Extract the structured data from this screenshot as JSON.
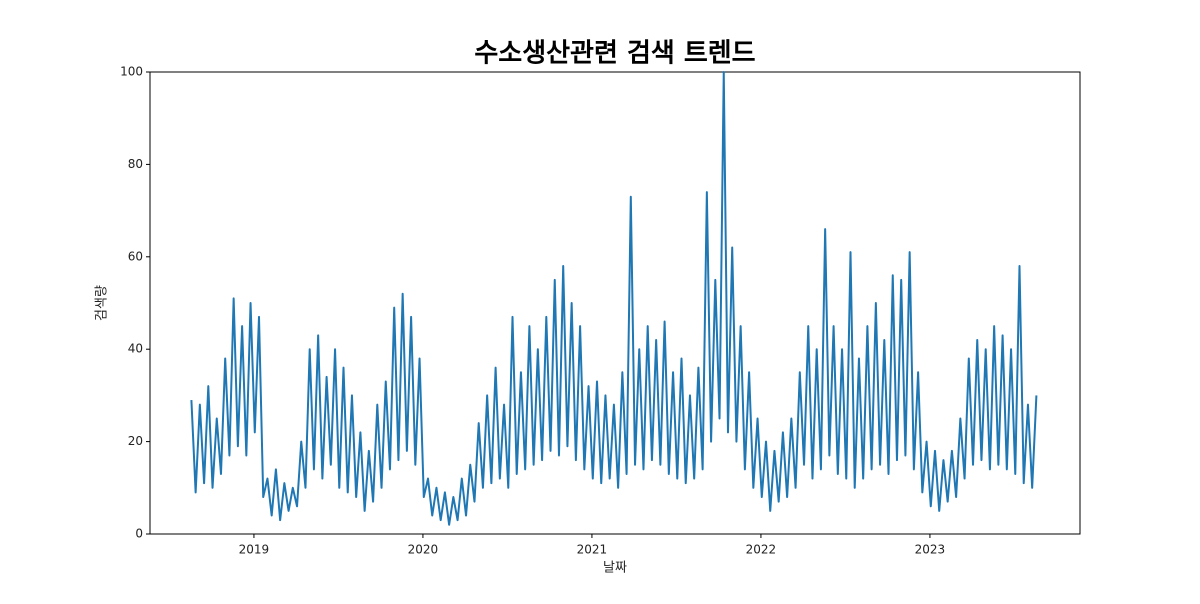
{
  "chart_data": {
    "type": "line",
    "title": "수소생산관련 검색 트렌드",
    "x_label": "날짜",
    "y_label": "검색량",
    "x": [
      2018.63,
      2018.655,
      2018.68,
      2018.705,
      2018.73,
      2018.755,
      2018.78,
      2018.805,
      2018.83,
      2018.855,
      2018.88,
      2018.905,
      2018.93,
      2018.955,
      2018.98,
      2019.005,
      2019.03,
      2019.055,
      2019.08,
      2019.105,
      2019.13,
      2019.155,
      2019.18,
      2019.205,
      2019.23,
      2019.255,
      2019.28,
      2019.305,
      2019.33,
      2019.355,
      2019.38,
      2019.405,
      2019.43,
      2019.455,
      2019.48,
      2019.505,
      2019.53,
      2019.555,
      2019.58,
      2019.605,
      2019.63,
      2019.655,
      2019.68,
      2019.705,
      2019.73,
      2019.755,
      2019.78,
      2019.805,
      2019.83,
      2019.855,
      2019.88,
      2019.905,
      2019.93,
      2019.955,
      2019.98,
      2020.005,
      2020.03,
      2020.055,
      2020.08,
      2020.105,
      2020.13,
      2020.155,
      2020.18,
      2020.205,
      2020.23,
      2020.255,
      2020.28,
      2020.305,
      2020.33,
      2020.355,
      2020.38,
      2020.405,
      2020.43,
      2020.455,
      2020.48,
      2020.505,
      2020.53,
      2020.555,
      2020.58,
      2020.605,
      2020.63,
      2020.655,
      2020.68,
      2020.705,
      2020.73,
      2020.755,
      2020.78,
      2020.805,
      2020.83,
      2020.855,
      2020.88,
      2020.905,
      2020.93,
      2020.955,
      2020.98,
      2021.005,
      2021.03,
      2021.055,
      2021.08,
      2021.105,
      2021.13,
      2021.155,
      2021.18,
      2021.205,
      2021.23,
      2021.255,
      2021.28,
      2021.305,
      2021.33,
      2021.355,
      2021.38,
      2021.405,
      2021.43,
      2021.455,
      2021.48,
      2021.505,
      2021.53,
      2021.555,
      2021.58,
      2021.605,
      2021.63,
      2021.655,
      2021.68,
      2021.705,
      2021.73,
      2021.755,
      2021.78,
      2021.805,
      2021.83,
      2021.855,
      2021.88,
      2021.905,
      2021.93,
      2021.955,
      2021.98,
      2022.005,
      2022.03,
      2022.055,
      2022.08,
      2022.105,
      2022.13,
      2022.155,
      2022.18,
      2022.205,
      2022.23,
      2022.255,
      2022.28,
      2022.305,
      2022.33,
      2022.355,
      2022.38,
      2022.405,
      2022.43,
      2022.455,
      2022.48,
      2022.505,
      2022.53,
      2022.555,
      2022.58,
      2022.605,
      2022.63,
      2022.655,
      2022.68,
      2022.705,
      2022.73,
      2022.755,
      2022.78,
      2022.805,
      2022.83,
      2022.855,
      2022.88,
      2022.905,
      2022.93,
      2022.955,
      2022.98,
      2023.005,
      2023.03,
      2023.055,
      2023.08,
      2023.105,
      2023.13,
      2023.155,
      2023.18,
      2023.205,
      2023.23,
      2023.255,
      2023.28,
      2023.305,
      2023.33,
      2023.355,
      2023.38,
      2023.405,
      2023.43,
      2023.455,
      2023.48,
      2023.505,
      2023.53,
      2023.555,
      2023.58,
      2023.605,
      2023.63
    ],
    "values": [
      29,
      9,
      28,
      11,
      32,
      10,
      25,
      13,
      38,
      17,
      51,
      19,
      45,
      17,
      50,
      22,
      47,
      8,
      12,
      4,
      14,
      3,
      11,
      5,
      10,
      6,
      20,
      10,
      40,
      14,
      43,
      12,
      34,
      15,
      40,
      10,
      36,
      9,
      30,
      8,
      22,
      5,
      18,
      7,
      28,
      10,
      33,
      14,
      49,
      16,
      52,
      18,
      47,
      15,
      38,
      8,
      12,
      4,
      10,
      3,
      9,
      2,
      8,
      3,
      12,
      4,
      15,
      7,
      24,
      10,
      30,
      11,
      36,
      12,
      28,
      10,
      47,
      13,
      35,
      14,
      45,
      15,
      40,
      16,
      47,
      18,
      55,
      17,
      58,
      19,
      50,
      16,
      45,
      14,
      32,
      12,
      33,
      11,
      30,
      12,
      28,
      10,
      35,
      13,
      73,
      15,
      40,
      14,
      45,
      16,
      42,
      15,
      46,
      13,
      35,
      12,
      38,
      11,
      30,
      12,
      36,
      14,
      74,
      20,
      55,
      25,
      100,
      22,
      62,
      20,
      45,
      14,
      35,
      10,
      25,
      8,
      20,
      5,
      18,
      7,
      22,
      8,
      25,
      10,
      35,
      15,
      45,
      12,
      40,
      14,
      66,
      17,
      45,
      13,
      40,
      12,
      61,
      10,
      38,
      12,
      45,
      14,
      50,
      15,
      42,
      13,
      56,
      16,
      55,
      17,
      61,
      14,
      35,
      9,
      20,
      6,
      18,
      5,
      16,
      7,
      18,
      8,
      25,
      12,
      38,
      15,
      42,
      16,
      40,
      14,
      45,
      15,
      43,
      14,
      40,
      13,
      58,
      11,
      28,
      10,
      30
    ],
    "color": "#1f77b4",
    "xlim": [
      2018.385,
      2023.888
    ],
    "xticks": [
      2019,
      2020,
      2021,
      2022,
      2023
    ],
    "ylim": [
      0,
      100
    ],
    "yticks": [
      0,
      20,
      40,
      60,
      80,
      100
    ],
    "grid": false
  }
}
